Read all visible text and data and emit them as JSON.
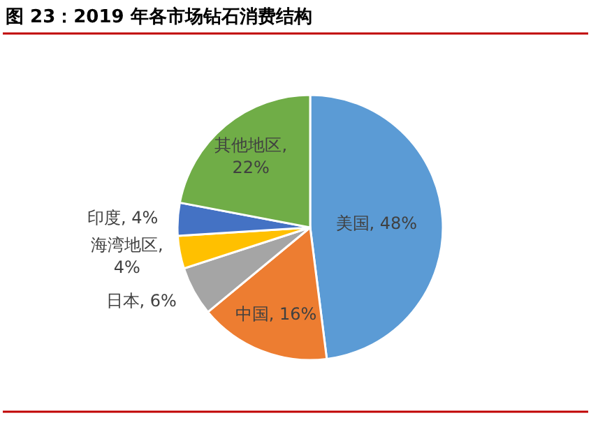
{
  "chart_data": {
    "type": "pie",
    "title": "图 23：2019 年各市场钻石消费结构",
    "categories": [
      "美国",
      "中国",
      "日本",
      "海湾地区",
      "印度",
      "其他地区"
    ],
    "values": [
      48,
      16,
      6,
      4,
      4,
      22
    ],
    "colors": [
      "#5b9bd5",
      "#ed7d31",
      "#a5a5a5",
      "#ffc000",
      "#4472c4",
      "#70ad47"
    ],
    "value_labels": [
      ", 48%",
      ", 16%",
      ", 6%",
      ", 4%",
      ", 4%",
      ", 22%"
    ],
    "legend": false
  }
}
